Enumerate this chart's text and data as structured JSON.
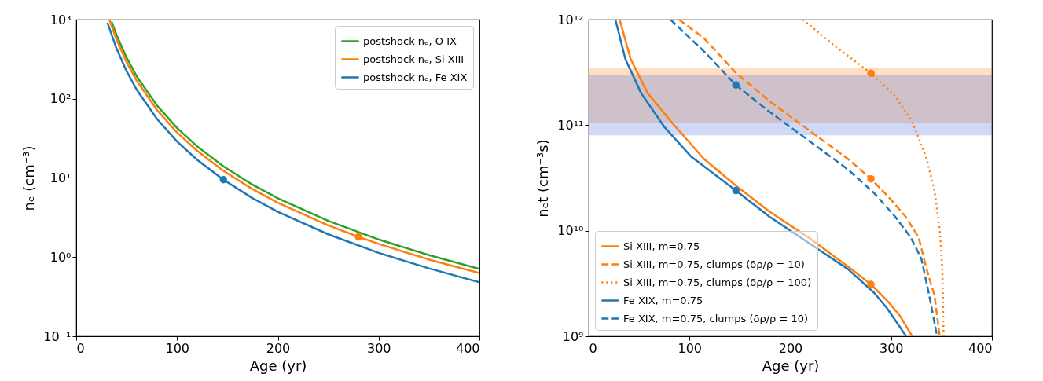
{
  "chart_data": [
    {
      "type": "line",
      "xlabel": "Age (yr)",
      "ylabel": "nₑ (cm⁻³)",
      "log": true,
      "grid": false,
      "legend": "top right",
      "xlim": [
        0,
        400
      ],
      "xticks": [
        0,
        100,
        200,
        300,
        400
      ],
      "ylim": [
        0.1,
        1000
      ],
      "yticks": [
        {
          "value": 0.1,
          "label": "10⁻¹"
        },
        {
          "value": 1,
          "label": "10⁰"
        },
        {
          "value": 10,
          "label": "10¹"
        },
        {
          "value": 100,
          "label": "10²"
        },
        {
          "value": 1000,
          "label": "10³"
        }
      ],
      "series": [
        {
          "name": "postshock nₑ, O IX",
          "color": "#2ca02c",
          "line_style": "solid",
          "x": [
            35,
            40,
            50,
            60,
            80,
            100,
            120,
            146,
            175,
            200,
            250,
            300,
            350,
            400
          ],
          "values": [
            946,
            638,
            330,
            192,
            82.6,
            42.8,
            25.0,
            14.0,
            8.2,
            5.53,
            2.87,
            1.67,
            1.06,
            0.71
          ]
        },
        {
          "name": "postshock nₑ, Si XIII",
          "color": "#ff7f0e",
          "line_style": "solid",
          "x": [
            33,
            40,
            50,
            60,
            80,
            100,
            120,
            146,
            175,
            200,
            250,
            280,
            300,
            350,
            400
          ],
          "values": [
            988,
            560,
            290,
            169,
            72.5,
            37.6,
            22.0,
            12.3,
            7.2,
            4.86,
            2.52,
            1.8,
            1.47,
            0.93,
            0.63
          ]
        },
        {
          "name": "postshock nₑ, Fe XIX",
          "color": "#1f77b4",
          "line_style": "solid",
          "x": [
            31,
            40,
            50,
            60,
            80,
            100,
            120,
            146,
            175,
            200,
            250,
            300,
            350,
            400
          ],
          "values": [
            915,
            431,
            223,
            130,
            55.8,
            28.9,
            16.9,
            9.5,
            5.54,
            3.74,
            1.94,
            1.13,
            0.72,
            0.48
          ]
        },
        {
          "type": "scatter",
          "marker": "circle",
          "color": "#1f77b4",
          "x": [
            146
          ],
          "values": [
            9.5
          ]
        },
        {
          "type": "scatter",
          "marker": "circle",
          "color": "#ff7f0e",
          "x": [
            280
          ],
          "values": [
            1.8
          ]
        }
      ]
    },
    {
      "type": "line",
      "xlabel": "Age (yr)",
      "ylabel": "nₑt (cm⁻³s)",
      "log": true,
      "grid": false,
      "legend": "bottom left",
      "xlim": [
        0,
        400
      ],
      "xticks": [
        0,
        100,
        200,
        300,
        400
      ],
      "ylim": [
        1000000000.0,
        1000000000000.0
      ],
      "yticks": [
        {
          "value": 1000000000.0,
          "label": "10⁹"
        },
        {
          "value": 10000000000.0,
          "label": "10¹⁰"
        },
        {
          "value": 100000000000.0,
          "label": "10¹¹"
        },
        {
          "value": 1000000000000.0,
          "label": "10¹²"
        }
      ],
      "bands": [
        {
          "axis": "y",
          "from": 105000000000.0,
          "to": 350000000000.0,
          "color": "#ff7f0e"
        },
        {
          "axis": "y",
          "from": 80000000000.0,
          "to": 300000000000.0,
          "color": "#4169e1"
        }
      ],
      "series": [
        {
          "name": "Si XIII, m=0.75",
          "color": "#ff7f0e",
          "line_style": "solid",
          "x": [
            30.7,
            41.6,
            58.5,
            83.2,
            114.3,
            145.5,
            179.3,
            218.3,
            257.2,
            280,
            296.2,
            309.2,
            320.9
          ],
          "values": [
            1000000000000.0,
            423000000000.0,
            201000000000.0,
            104000000000.0,
            47900000000.0,
            27000000000.0,
            15200000000.0,
            8590000000.0,
            4570000000.0,
            3100000000.0,
            2170000000.0,
            1540000000.0,
            1000000000.0
          ]
        },
        {
          "name": "Si XIII, m=0.75, clumps (δρ/ρ = 10)",
          "color": "#ff7f0e",
          "line_style": "dashed",
          "x": [
            89.7,
            114.3,
            145.5,
            179.3,
            218.3,
            257.2,
            280,
            296.2,
            314.4,
            327.4,
            335.2,
            343,
            348.2
          ],
          "values": [
            1000000000000.0,
            668000000000.0,
            317000000000.0,
            169000000000.0,
            89900000000.0,
            47900000000.0,
            31000000000.0,
            21500000000.0,
            13600000000.0,
            8590000000.0,
            4320000000.0,
            2440000000.0,
            1000000000.0
          ]
        },
        {
          "name": "Si XIII, m=0.75, clumps (δρ/ρ = 100)",
          "color": "#ff7f0e",
          "line_style": "dotted",
          "x": [
            212.5,
            244.2,
            280,
            304,
            319.6,
            327.4,
            335.2,
            343,
            348.2,
            350.8,
            352.1
          ],
          "values": [
            1000000000000.0,
            562000000000.0,
            310000000000.0,
            189000000000.0,
            113000000000.0,
            75700000000.0,
            47900000000.0,
            24100000000.0,
            10200000000.0,
            4320000000.0,
            1000000000.0
          ]
        },
        {
          "name": "Fe XIX, m=0.75",
          "color": "#1f77b4",
          "line_style": "solid",
          "x": [
            26.5,
            36.4,
            52,
            75.4,
            101.3,
            146,
            179.3,
            218.3,
            257.2,
            283.2,
            296.2,
            314.9
          ],
          "values": [
            1000000000000.0,
            423000000000.0,
            201000000000.0,
            95200000000.0,
            50700000000.0,
            24000000000.0,
            13600000000.0,
            7660000000.0,
            4320000000.0,
            2580000000.0,
            1830000000.0,
            1000000000.0
          ]
        },
        {
          "name": "Fe XIX, m=0.75, clumps (δρ/ρ = 10)",
          "color": "#1f77b4",
          "line_style": "dashed",
          "x": [
            81.1,
            114.3,
            146,
            179.3,
            218.3,
            257.2,
            283.2,
            304,
            319.6,
            330,
            337.8,
            345.6
          ],
          "values": [
            1000000000000.0,
            501000000000.0,
            240000000000.0,
            134000000000.0,
            71500000000.0,
            38000000000.0,
            22700000000.0,
            13600000000.0,
            8590000000.0,
            5430000000.0,
            2440000000.0,
            1000000000.0
          ]
        },
        {
          "type": "scatter",
          "marker": "circle",
          "color": "#1f77b4",
          "x": [
            146,
            146
          ],
          "values": [
            240000000000.0,
            24000000000.0
          ]
        },
        {
          "type": "scatter",
          "marker": "circle",
          "color": "#ff7f0e",
          "x": [
            280,
            280,
            280
          ],
          "values": [
            310000000000.0,
            31000000000.0,
            3100000000.0
          ]
        }
      ]
    }
  ]
}
